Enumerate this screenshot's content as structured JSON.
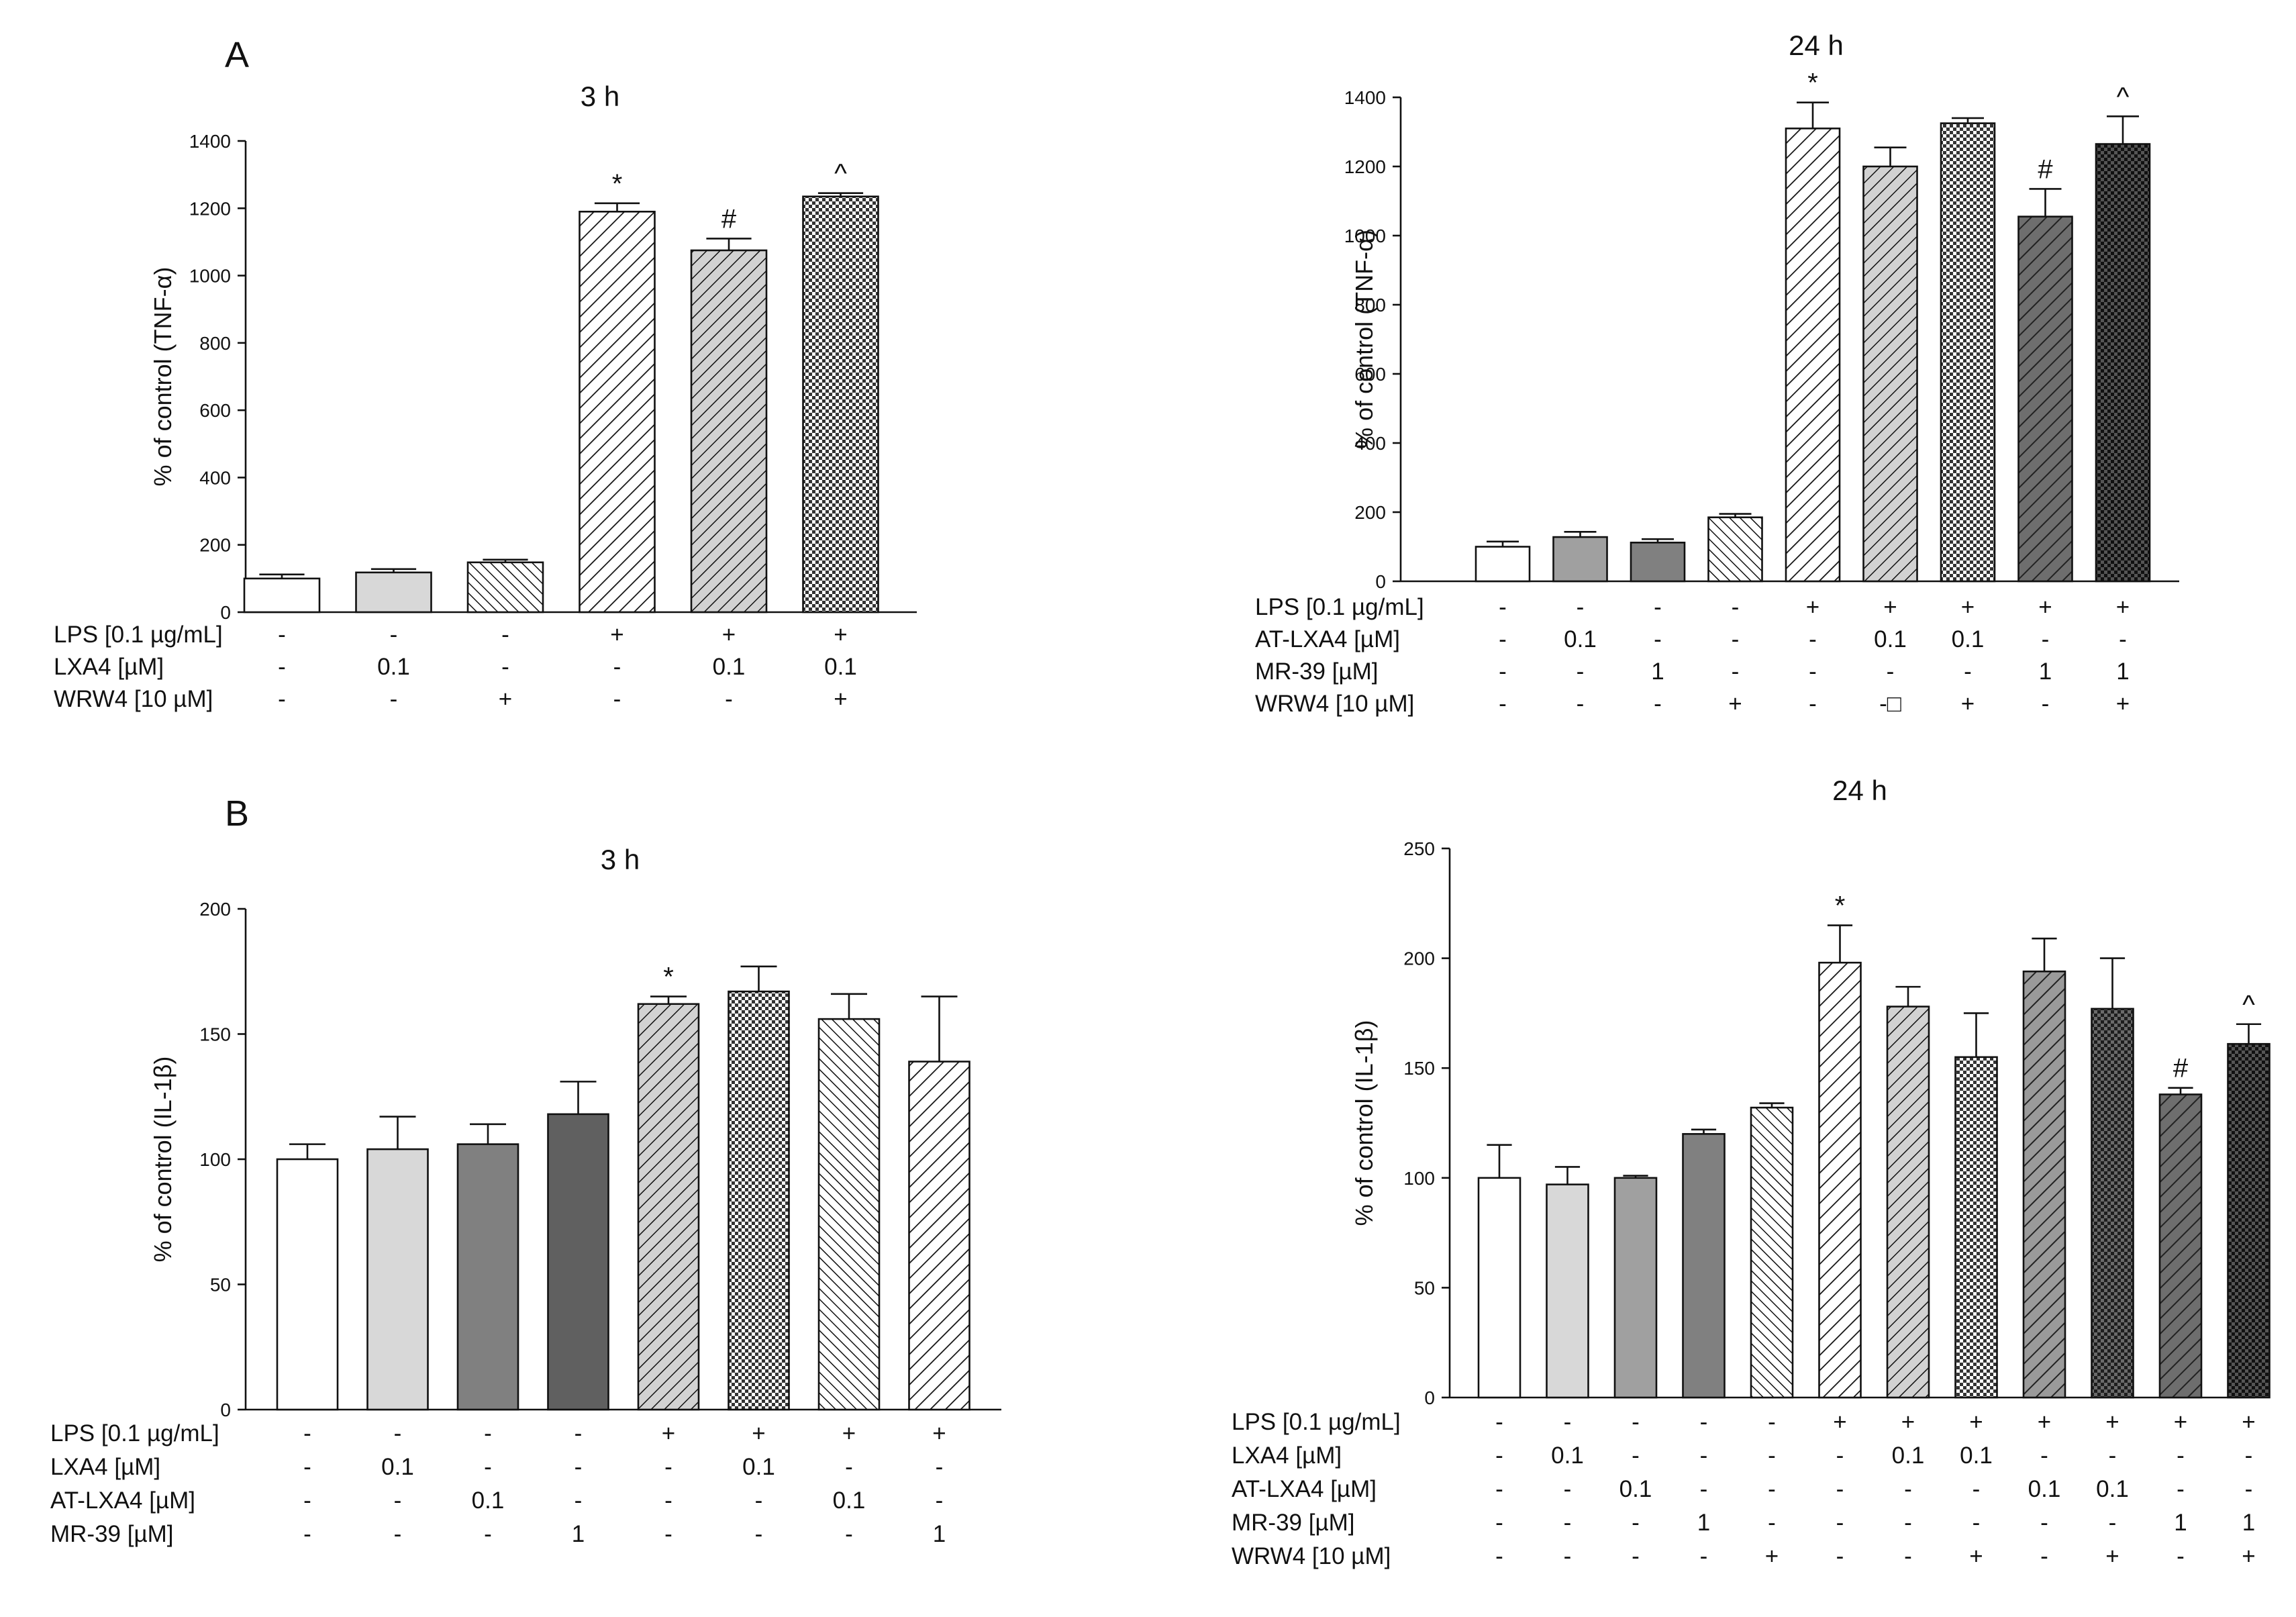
{
  "figure": {
    "panel_letters": [
      "A",
      "B"
    ]
  },
  "chart_data": [
    {
      "id": "A-3h",
      "type": "bar",
      "title": "3 h",
      "ylabel": "% of control (TNF-α)",
      "ylim": [
        0,
        1400
      ],
      "yticks": [
        "0",
        "200",
        "400",
        "600",
        "800",
        "1000",
        "1200",
        "1400"
      ],
      "values": [
        100,
        118,
        148,
        1190,
        1075,
        1235
      ],
      "errors": [
        12,
        10,
        8,
        25,
        35,
        10
      ],
      "fills": [
        "#ffffff",
        "#d8d8d8",
        "hatch-dense",
        "hatch",
        "hatch-gray",
        "crosshatch"
      ],
      "annotations": [
        "",
        "",
        "",
        "*",
        "#",
        "^"
      ],
      "conditions": [
        {
          "label": "LPS [0.1 µg/mL]",
          "values": [
            "-",
            "-",
            "-",
            "+",
            "+",
            "+"
          ]
        },
        {
          "label": "LXA4 [µM]",
          "values": [
            "-",
            "0.1",
            "-",
            "-",
            "0.1",
            "0.1"
          ]
        },
        {
          "label": "WRW4 [10 µM]",
          "values": [
            "-",
            "-",
            "+",
            "-",
            "-",
            "+"
          ]
        }
      ]
    },
    {
      "id": "A-24h",
      "type": "bar",
      "title": "24 h",
      "ylabel": "% of control (TNF-α)",
      "ylim": [
        0,
        1400
      ],
      "yticks": [
        "0",
        "200",
        "400",
        "600",
        "800",
        "1000",
        "1200",
        "1400"
      ],
      "values": [
        100,
        128,
        112,
        185,
        1310,
        1200,
        1325,
        1055,
        1265
      ],
      "errors": [
        15,
        15,
        10,
        10,
        75,
        55,
        15,
        80,
        80
      ],
      "fills": [
        "#ffffff",
        "#a0a0a0",
        "#808080",
        "hatch-dense",
        "hatch",
        "hatch-gray",
        "crosshatch",
        "hatch-dark",
        "crosshatch-dark"
      ],
      "annotations": [
        "",
        "",
        "",
        "",
        "*",
        "",
        "",
        "#",
        "^"
      ],
      "conditions": [
        {
          "label": "LPS [0.1 µg/mL]",
          "values": [
            "-",
            "-",
            "-",
            "-",
            "+",
            "+",
            "+",
            "+",
            "+"
          ]
        },
        {
          "label": "AT-LXA4 [µM]",
          "values": [
            "-",
            "0.1",
            "-",
            "-",
            "-",
            "0.1",
            "0.1",
            "-",
            "-"
          ]
        },
        {
          "label": "MR-39 [µM]",
          "values": [
            "-",
            "-",
            "1",
            "-",
            "-",
            "-",
            "-",
            "1",
            "1"
          ]
        },
        {
          "label": "WRW4 [10 µM]",
          "values": [
            "-",
            "-",
            "-",
            "+",
            "-",
            "-□",
            "+",
            "-",
            "+"
          ]
        }
      ]
    },
    {
      "id": "B-3h",
      "type": "bar",
      "title": "3 h",
      "ylabel": "% of control (IL-1β)",
      "ylim": [
        0,
        200
      ],
      "yticks": [
        "0",
        "50",
        "100",
        "150",
        "200"
      ],
      "values": [
        100,
        104,
        106,
        118,
        162,
        167,
        156,
        139
      ],
      "errors": [
        6,
        13,
        8,
        13,
        3,
        10,
        10,
        26
      ],
      "fills": [
        "#ffffff",
        "#d8d8d8",
        "#808080",
        "#606060",
        "hatch-gray",
        "crosshatch",
        "hatch-dense",
        "hatch"
      ],
      "annotations": [
        "",
        "",
        "",
        "",
        "*",
        "",
        "",
        ""
      ],
      "conditions": [
        {
          "label": "LPS [0.1 µg/mL]",
          "values": [
            "-",
            "-",
            "-",
            "-",
            "+",
            "+",
            "+",
            "+"
          ]
        },
        {
          "label": "LXA4 [µM]",
          "values": [
            "-",
            "0.1",
            "-",
            "-",
            "-",
            "0.1",
            "-",
            "-"
          ]
        },
        {
          "label": "AT-LXA4 [µM]",
          "values": [
            "-",
            "-",
            "0.1",
            "-",
            "-",
            "-",
            "0.1",
            "-"
          ]
        },
        {
          "label": "MR-39 [µM]",
          "values": [
            "-",
            "-",
            "-",
            "1",
            "-",
            "-",
            "-",
            "1"
          ]
        }
      ]
    },
    {
      "id": "B-24h",
      "type": "bar",
      "title": "24 h",
      "ylabel": "% of control (IL-1β)",
      "ylim": [
        0,
        250
      ],
      "yticks": [
        "0",
        "50",
        "100",
        "150",
        "200",
        "250"
      ],
      "values": [
        100,
        97,
        100,
        120,
        132,
        198,
        178,
        155,
        194,
        177,
        138,
        161
      ],
      "errors": [
        15,
        8,
        1,
        2,
        2,
        17,
        9,
        20,
        15,
        23,
        3,
        9
      ],
      "fills": [
        "#ffffff",
        "#d8d8d8",
        "#a0a0a0",
        "#808080",
        "hatch-dense",
        "hatch",
        "hatch-gray",
        "crosshatch",
        "hatch-mid",
        "crosshatch-mid",
        "hatch-dark",
        "crosshatch-dark"
      ],
      "annotations": [
        "",
        "",
        "",
        "",
        "",
        "*",
        "",
        "",
        "",
        "",
        "#",
        "^"
      ],
      "conditions": [
        {
          "label": "LPS [0.1 µg/mL]",
          "values": [
            "-",
            "-",
            "-",
            "-",
            "-",
            "+",
            "+",
            "+",
            "+",
            "+",
            "+",
            "+"
          ]
        },
        {
          "label": "LXA4 [µM]",
          "values": [
            "-",
            "0.1",
            "-",
            "-",
            "-",
            "-",
            "0.1",
            "0.1",
            "-",
            "-",
            "-",
            "-"
          ]
        },
        {
          "label": "AT-LXA4 [µM]",
          "values": [
            "-",
            "-",
            "0.1",
            "-",
            "-",
            "-",
            "-",
            "-",
            "0.1",
            "0.1",
            "-",
            "-"
          ]
        },
        {
          "label": "MR-39 [µM]",
          "values": [
            "-",
            "-",
            "-",
            "1",
            "-",
            "-",
            "-",
            "-",
            "-",
            "-",
            "1",
            "1"
          ]
        },
        {
          "label": "WRW4 [10 µM]",
          "values": [
            "-",
            "-",
            "-",
            "-",
            "+",
            "-",
            "-",
            "+",
            "-",
            "+",
            "-",
            "+"
          ]
        }
      ]
    }
  ]
}
